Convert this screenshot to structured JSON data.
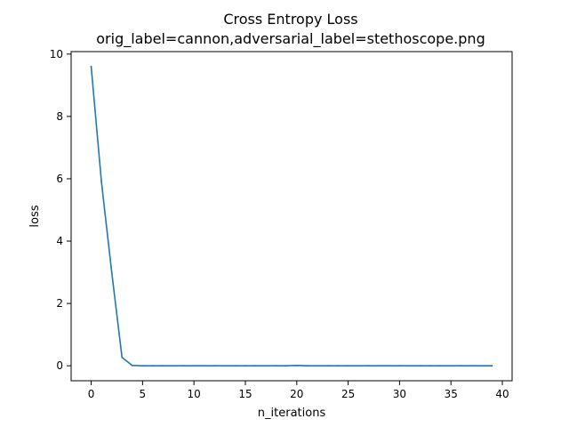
{
  "chart_data": {
    "type": "line",
    "title": "Cross Entropy Loss",
    "subtitle": "orig_label=cannon,adversarial_label=stethoscope.png",
    "xlabel": "n_iterations",
    "ylabel": "loss",
    "xlim": [
      -1.95,
      40.95
    ],
    "ylim": [
      -0.48,
      10.08
    ],
    "x_ticks": [
      0,
      5,
      10,
      15,
      20,
      25,
      30,
      35,
      40
    ],
    "x_tick_labels": [
      "0",
      "5",
      "10",
      "15",
      "20",
      "25",
      "30",
      "35",
      "40"
    ],
    "y_ticks": [
      0,
      2,
      4,
      6,
      8,
      10
    ],
    "y_tick_labels": [
      "0",
      "2",
      "4",
      "6",
      "8",
      "10"
    ],
    "grid": false,
    "legend": "none",
    "series": [
      {
        "color": "#1f77b4",
        "x": [
          0,
          1,
          2,
          3,
          4,
          5,
          6,
          7,
          8,
          9,
          10,
          11,
          12,
          13,
          14,
          15,
          16,
          17,
          18,
          19,
          20,
          21,
          22,
          23,
          24,
          25,
          26,
          27,
          28,
          29,
          30,
          31,
          32,
          33,
          34,
          35,
          36,
          37,
          38,
          39
        ],
        "values": [
          9.6,
          5.9,
          3.0,
          0.27,
          0.01,
          0.0,
          0.0,
          0.0,
          0.0,
          0.0,
          0.0,
          0.0,
          0.0,
          0.0,
          0.0,
          0.0,
          0.0,
          0.0,
          0.0,
          0.0,
          0.01,
          0.0,
          0.0,
          0.0,
          0.0,
          0.0,
          0.0,
          0.0,
          0.0,
          0.0,
          0.0,
          0.0,
          0.0,
          0.0,
          0.0,
          0.0,
          0.0,
          0.0,
          0.0,
          0.0
        ]
      }
    ]
  }
}
